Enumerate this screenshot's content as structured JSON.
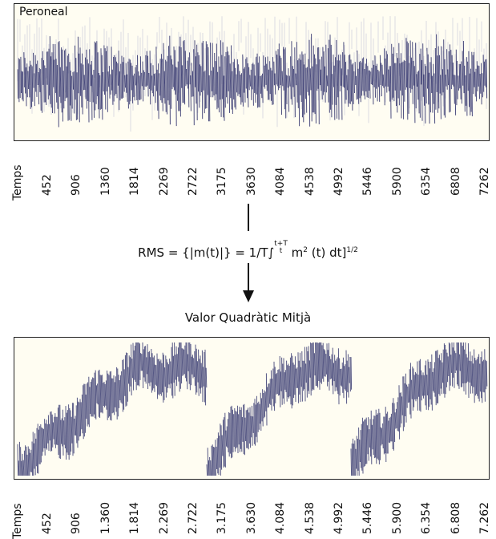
{
  "top_panel": {
    "label": "Peroneal",
    "signal_color": "#2d2f6a"
  },
  "bottom_panel": {
    "signal_color": "#2d2f6a"
  },
  "top_axis": {
    "name": "Temps",
    "ticks": [
      "452",
      "906",
      "1360",
      "1814",
      "2269",
      "2722",
      "3175",
      "3630",
      "4084",
      "4538",
      "4992",
      "5446",
      "5900",
      "6354",
      "6808",
      "7262"
    ]
  },
  "bottom_axis": {
    "name": "Temps",
    "ticks": [
      "452",
      "906",
      "1.360",
      "1.814",
      "2.269",
      "2.722",
      "3.175",
      "3.630",
      "4.084",
      "4.538",
      "4.992",
      "5.446",
      "5.900",
      "6.354",
      "6.808",
      "7.262"
    ]
  },
  "formula": {
    "lhs": "RMS = {|m(t)|} = 1/T",
    "integral": "∫",
    "upper_limit": "t+T",
    "lower_limit": "t",
    "integrand": " m",
    "square": "2",
    "rest": " (t) dt]",
    "exponent": "1/2"
  },
  "caption": "Valor Quadràtic Mitjà"
}
